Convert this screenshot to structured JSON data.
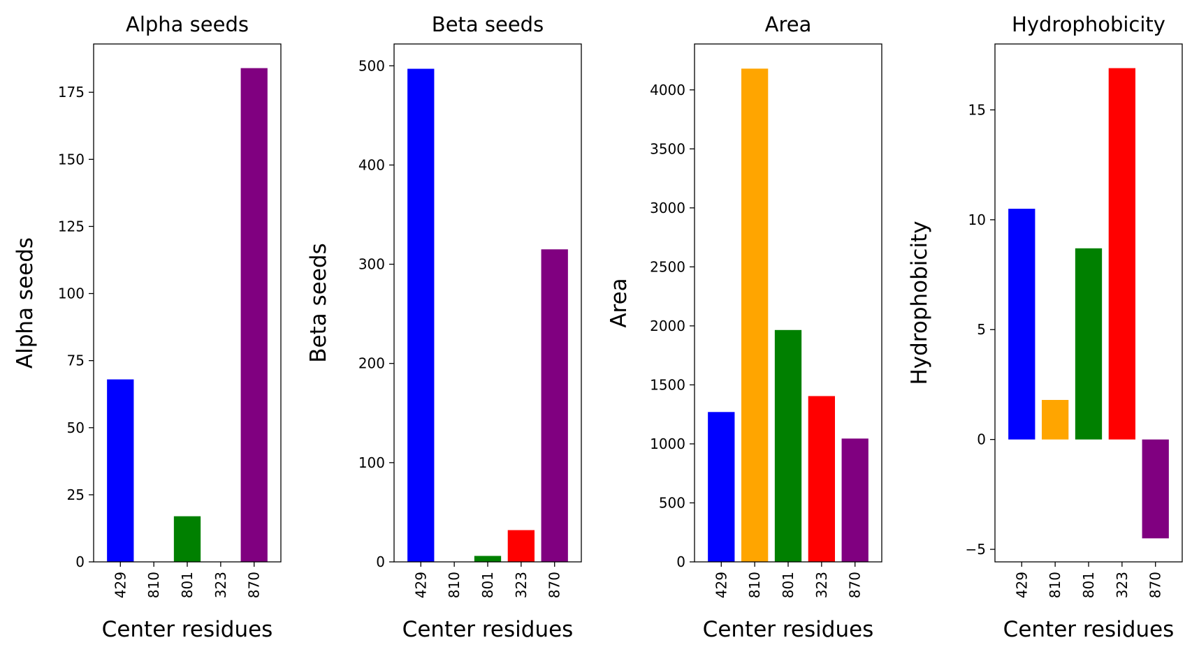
{
  "chart_data": [
    {
      "type": "bar",
      "title": "Alpha seeds",
      "xlabel": "Center residues",
      "ylabel": "Alpha seeds",
      "categories": [
        "429",
        "810",
        "801",
        "323",
        "870"
      ],
      "values": [
        68,
        0,
        17,
        0,
        184
      ],
      "colors": [
        "#0000ff",
        "#ffa500",
        "#008000",
        "#ff0000",
        "#800080"
      ],
      "ylim": [
        0,
        193
      ],
      "yticks": [
        0,
        25,
        50,
        75,
        100,
        125,
        150,
        175
      ]
    },
    {
      "type": "bar",
      "title": "Beta seeds",
      "xlabel": "Center residues",
      "ylabel": "Beta seeds",
      "categories": [
        "429",
        "810",
        "801",
        "323",
        "870"
      ],
      "values": [
        497,
        0,
        6,
        32,
        315
      ],
      "colors": [
        "#0000ff",
        "#ffa500",
        "#008000",
        "#ff0000",
        "#800080"
      ],
      "ylim": [
        0,
        522
      ],
      "yticks": [
        0,
        100,
        200,
        300,
        400,
        500
      ]
    },
    {
      "type": "bar",
      "title": "Area",
      "xlabel": "Center residues",
      "ylabel": "Area",
      "categories": [
        "429",
        "810",
        "801",
        "323",
        "870"
      ],
      "values": [
        1270,
        4180,
        1965,
        1405,
        1045
      ],
      "colors": [
        "#0000ff",
        "#ffa500",
        "#008000",
        "#ff0000",
        "#800080"
      ],
      "ylim": [
        0,
        4389
      ],
      "yticks": [
        0,
        500,
        1000,
        1500,
        2000,
        2500,
        3000,
        3500,
        4000
      ]
    },
    {
      "type": "bar",
      "title": "Hydrophobicity",
      "xlabel": "Center residues",
      "ylabel": "Hydrophobicity",
      "categories": [
        "429",
        "810",
        "801",
        "323",
        "870"
      ],
      "values": [
        10.5,
        1.8,
        8.7,
        16.9,
        -4.5
      ],
      "colors": [
        "#0000ff",
        "#ffa500",
        "#008000",
        "#ff0000",
        "#800080"
      ],
      "ylim": [
        -5.57,
        18.0
      ],
      "yticks": [
        -5,
        0,
        5,
        10,
        15
      ]
    }
  ]
}
